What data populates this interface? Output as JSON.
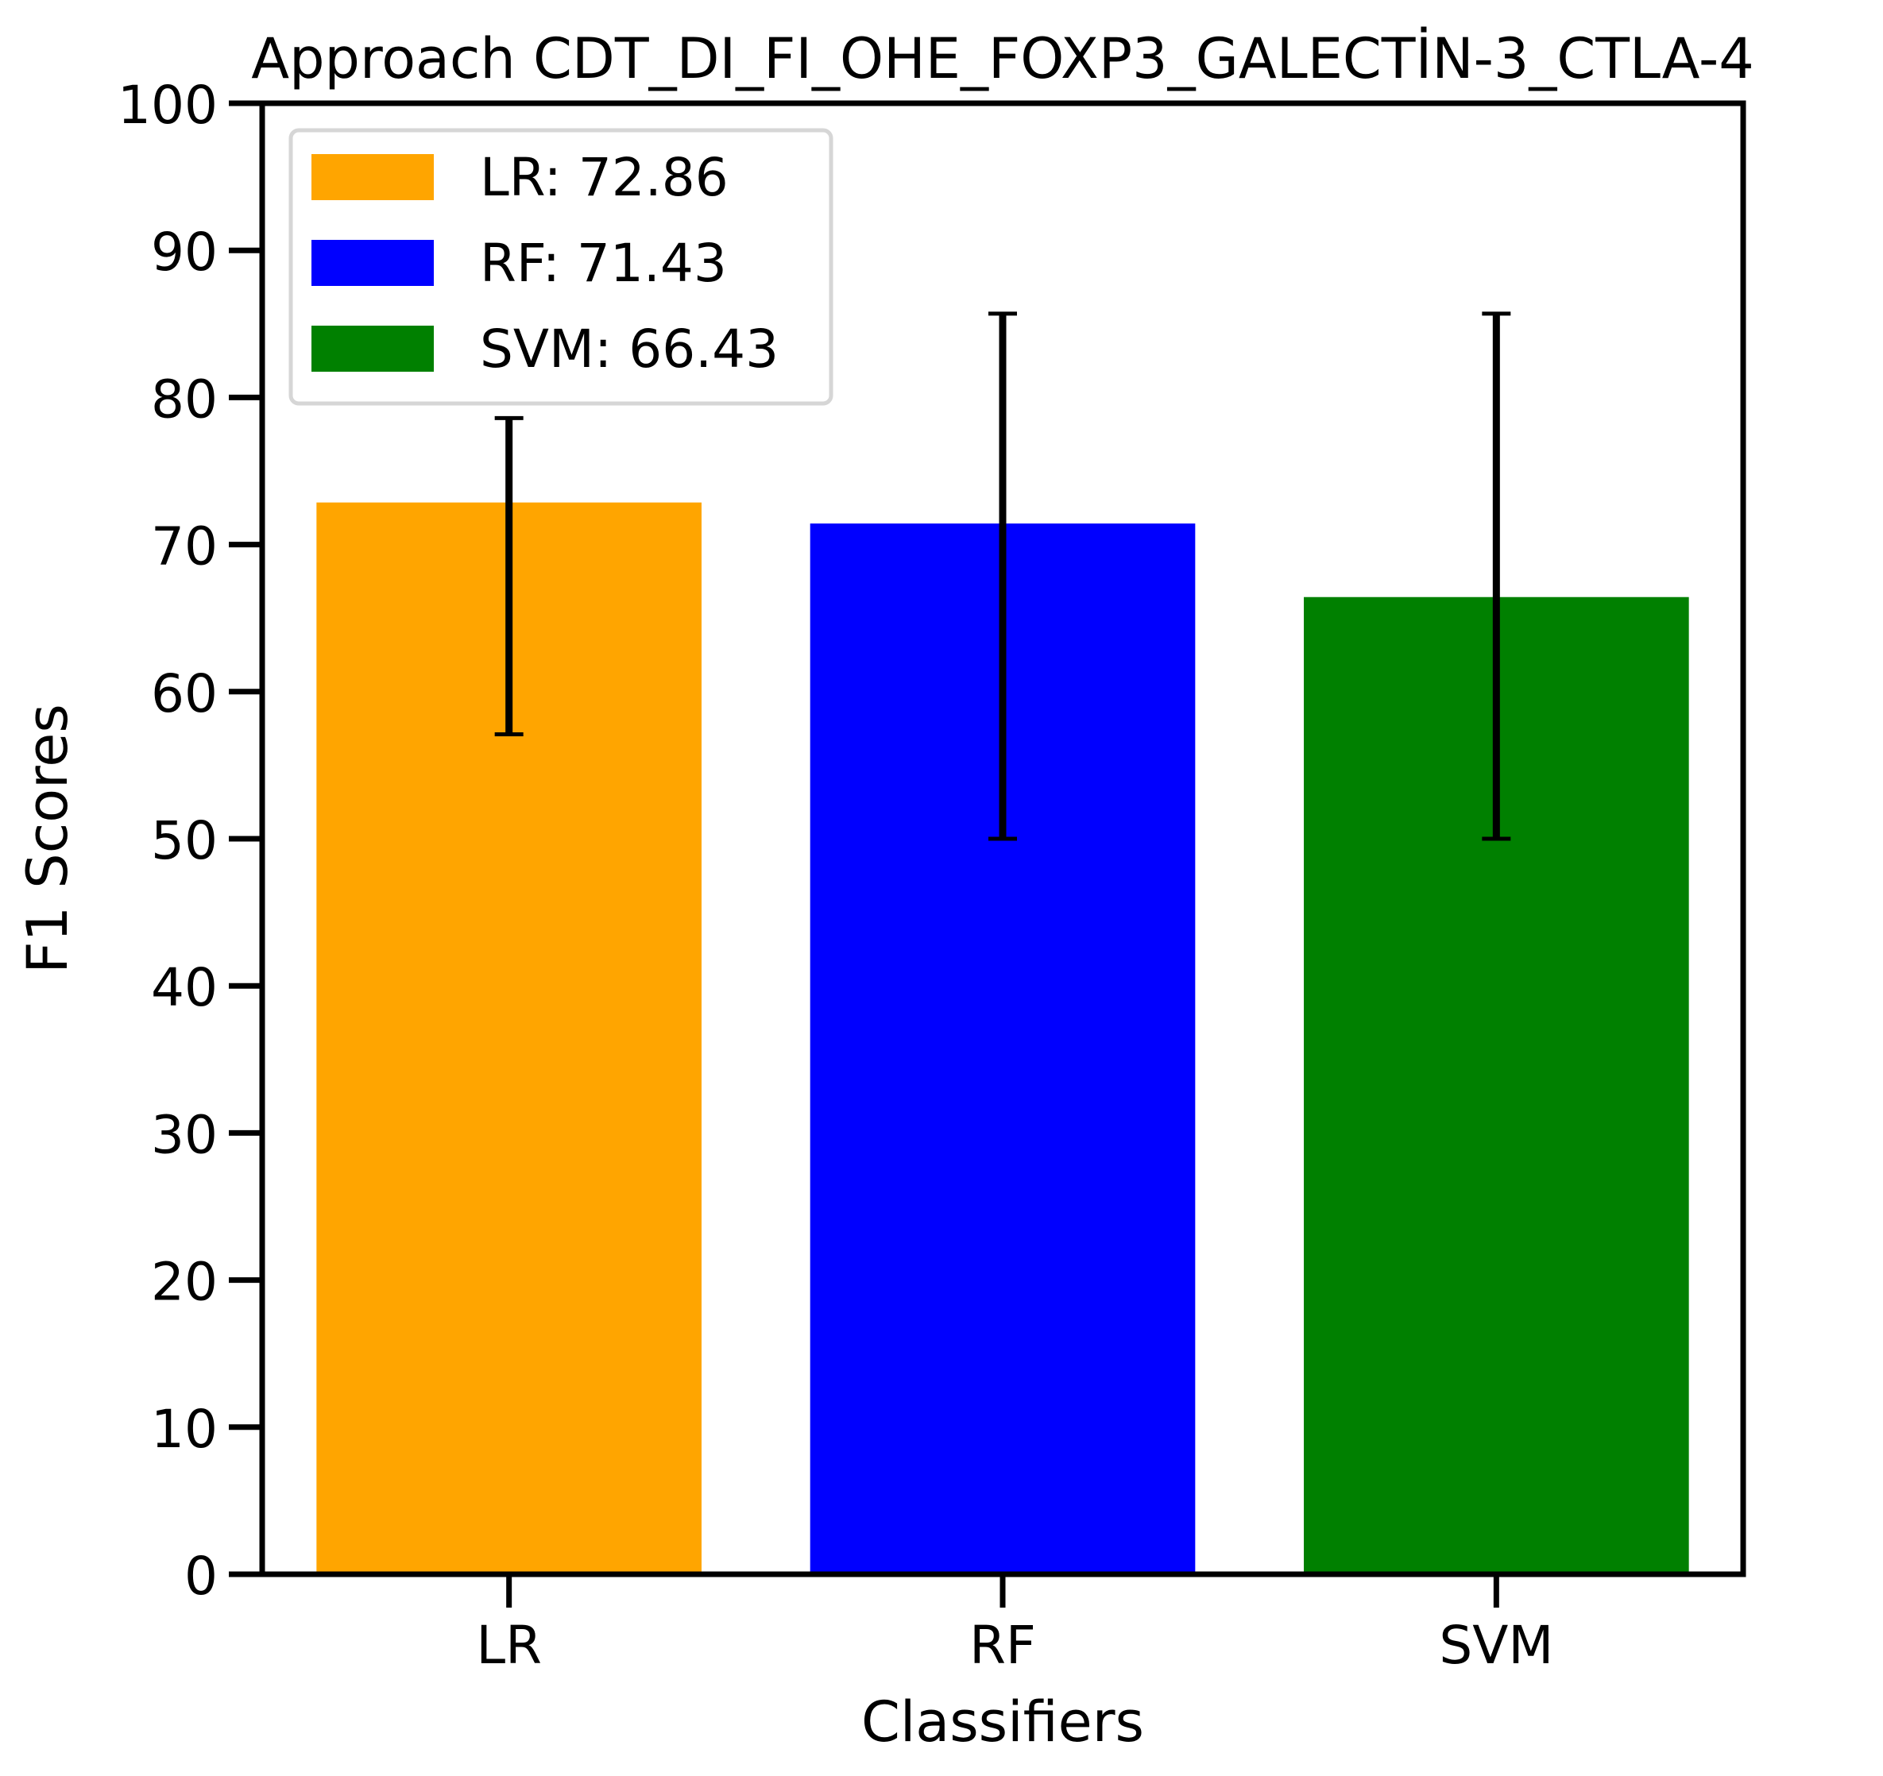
{
  "chart_data": {
    "type": "bar",
    "title": "Approach CDT_DI_FI_OHE_FOXP3_GALECTİN-3_CTLA-4",
    "xlabel": "Classifiers",
    "ylabel": "F1 Scores",
    "ylim": [
      0,
      100
    ],
    "yticks": [
      0,
      10,
      20,
      30,
      40,
      50,
      60,
      70,
      80,
      90,
      100
    ],
    "categories": [
      "LR",
      "RF",
      "SVM"
    ],
    "values": [
      72.86,
      71.43,
      66.43
    ],
    "error_low": [
      57.1,
      50.0,
      50.0
    ],
    "error_high": [
      78.6,
      85.7,
      85.7
    ],
    "colors": [
      "#FFA500",
      "#0000FF",
      "#008000"
    ],
    "legend": {
      "position": "top-left",
      "entries": [
        "LR: 72.86",
        "RF: 71.43",
        "SVM: 66.43"
      ]
    },
    "grid": false
  }
}
